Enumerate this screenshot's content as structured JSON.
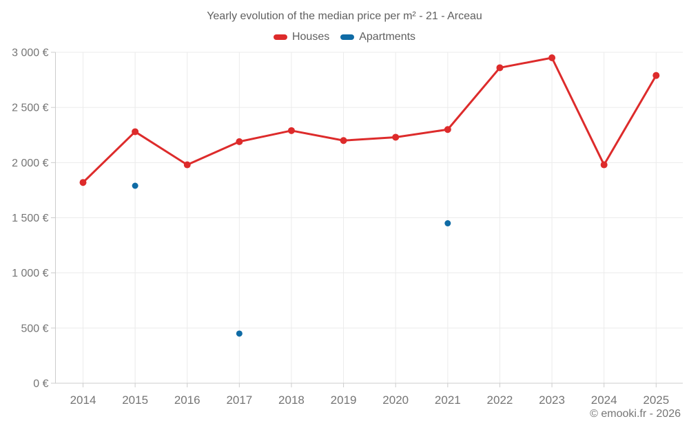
{
  "page": {
    "title": "Yearly evolution of the median price per m² - 21 - Arceau",
    "footer": "© emooki.fr - 2026"
  },
  "colors": {
    "houses": "#dd2b2b",
    "apartments": "#0f6ba5",
    "grid": "#ebebeb",
    "axis": "#cccccc",
    "tick_label": "#757575",
    "title_text": "#5f5f5f"
  },
  "chart_data": {
    "type": "line",
    "title": "Yearly evolution of the median price per m² - 21 - Arceau",
    "xlabel": "",
    "ylabel": "",
    "categories": [
      "2014",
      "2015",
      "2016",
      "2017",
      "2018",
      "2019",
      "2020",
      "2021",
      "2022",
      "2023",
      "2024",
      "2025"
    ],
    "series": [
      {
        "name": "Houses",
        "color": "#dd2b2b",
        "line": true,
        "marker_radius": 5,
        "values": [
          1820,
          2280,
          1980,
          2190,
          2290,
          2200,
          2230,
          2300,
          2860,
          2950,
          1980,
          2790
        ]
      },
      {
        "name": "Apartments",
        "color": "#0f6ba5",
        "line": false,
        "marker_radius": 4.5,
        "values": [
          null,
          1790,
          null,
          450,
          null,
          null,
          null,
          1450,
          null,
          null,
          null,
          null
        ]
      }
    ],
    "ylim": [
      0,
      3000
    ],
    "ytick_step": 500,
    "ytick_labels": [
      "0 €",
      "500 €",
      "1 000 €",
      "1 500 €",
      "2 000 €",
      "2 500 €",
      "3 000 €"
    ],
    "grid": true,
    "legend_position": "top"
  }
}
